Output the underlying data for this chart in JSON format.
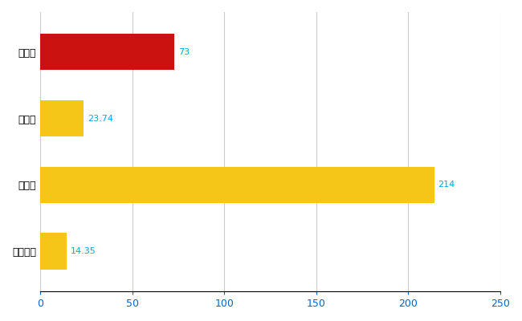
{
  "categories": [
    "長岡市",
    "県平均",
    "県最大",
    "全国平均"
  ],
  "values": [
    73,
    23.74,
    214,
    14.35
  ],
  "labels": [
    "73",
    "23.74",
    "214",
    "14.35"
  ],
  "bar_colors": [
    "#cc1111",
    "#f5c518",
    "#f5c518",
    "#f5c518"
  ],
  "xlim": [
    0,
    250
  ],
  "xticks": [
    0,
    50,
    100,
    150,
    200,
    250
  ],
  "grid_color": "#cccccc",
  "label_color": "#00aadd",
  "xtick_color": "#0066cc",
  "background_color": "#ffffff",
  "bar_height": 0.55,
  "label_fontsize": 8,
  "tick_fontsize": 9,
  "ytick_fontsize": 9,
  "figsize": [
    6.5,
    4.0
  ],
  "dpi": 100
}
